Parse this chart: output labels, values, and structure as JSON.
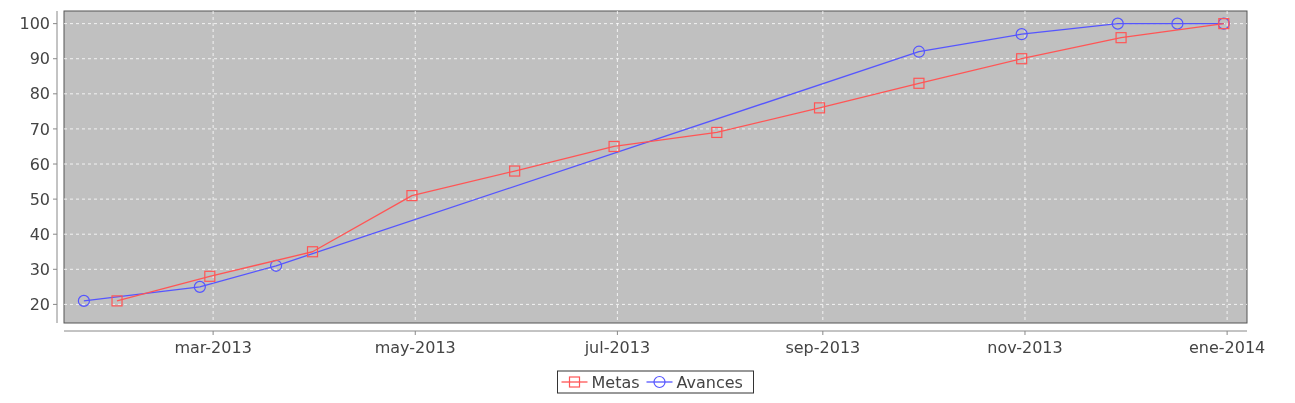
{
  "chart_data": {
    "type": "line",
    "xlim": [
      "2013-01-15",
      "2014-01-07"
    ],
    "xticks": [
      {
        "value": "2013-03-01",
        "label": "mar-2013"
      },
      {
        "value": "2013-05-01",
        "label": "may-2013"
      },
      {
        "value": "2013-07-01",
        "label": "jul-2013"
      },
      {
        "value": "2013-09-01",
        "label": "sep-2013"
      },
      {
        "value": "2013-11-01",
        "label": "nov-2013"
      },
      {
        "value": "2014-01-01",
        "label": "ene-2014"
      }
    ],
    "ylim": [
      14.7,
      103.6
    ],
    "yticks": [
      20,
      30,
      40,
      50,
      60,
      70,
      80,
      90,
      100
    ],
    "grid": true,
    "legend": "bottom",
    "line_style": "solid",
    "series": [
      {
        "name": "Metas",
        "color": "#ff5555",
        "marker": "square",
        "x": [
          "2013-01-31",
          "2013-02-28",
          "2013-03-31",
          "2013-04-30",
          "2013-05-31",
          "2013-06-30",
          "2013-07-31",
          "2013-08-31",
          "2013-09-30",
          "2013-10-31",
          "2013-11-30",
          "2013-12-31"
        ],
        "values": [
          21,
          28,
          35,
          51,
          58,
          65,
          69,
          76,
          83,
          90,
          96,
          100
        ]
      },
      {
        "name": "Avances",
        "color": "#5555ff",
        "marker": "circle",
        "x": [
          "2013-01-21",
          "2013-02-25",
          "2013-03-20",
          "2013-09-30",
          "2013-10-31",
          "2013-11-29",
          "2013-12-17",
          "2013-12-31"
        ],
        "values": [
          21,
          25,
          31,
          92,
          97,
          100,
          100,
          100
        ]
      }
    ]
  }
}
